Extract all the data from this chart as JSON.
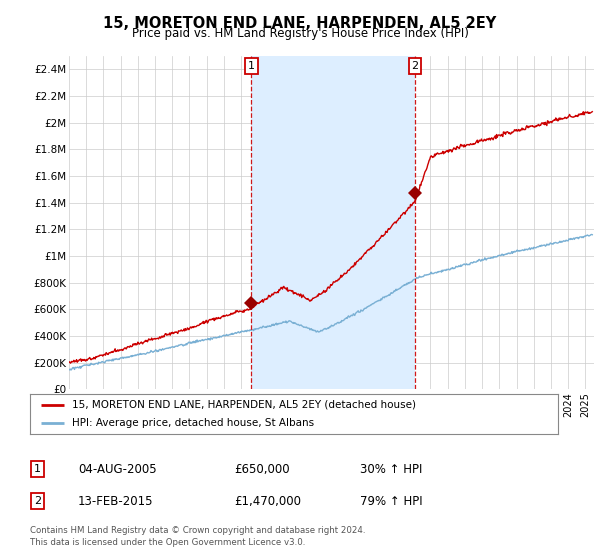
{
  "title": "15, MORETON END LANE, HARPENDEN, AL5 2EY",
  "subtitle": "Price paid vs. HM Land Registry's House Price Index (HPI)",
  "ylim": [
    0,
    2500000
  ],
  "yticks": [
    0,
    200000,
    400000,
    600000,
    800000,
    1000000,
    1200000,
    1400000,
    1600000,
    1800000,
    2000000,
    2200000,
    2400000
  ],
  "ytick_labels": [
    "£0",
    "£200K",
    "£400K",
    "£600K",
    "£800K",
    "£1M",
    "£1.2M",
    "£1.4M",
    "£1.6M",
    "£1.8M",
    "£2M",
    "£2.2M",
    "£2.4M"
  ],
  "xlim_start": 1995.0,
  "xlim_end": 2025.5,
  "sale1_x": 2005.6,
  "sale1_y": 650000,
  "sale2_x": 2015.1,
  "sale2_y": 1470000,
  "sale1_label": "1",
  "sale2_label": "2",
  "vline1_x": 2005.6,
  "vline2_x": 2015.1,
  "red_line_color": "#cc0000",
  "blue_line_color": "#7ab0d4",
  "shade_color": "#ddeeff",
  "dot_color": "#990000",
  "vline_color": "#cc0000",
  "legend_line1": "15, MORETON END LANE, HARPENDEN, AL5 2EY (detached house)",
  "legend_line2": "HPI: Average price, detached house, St Albans",
  "table_row1_num": "1",
  "table_row1_date": "04-AUG-2005",
  "table_row1_price": "£650,000",
  "table_row1_hpi": "30% ↑ HPI",
  "table_row2_num": "2",
  "table_row2_date": "13-FEB-2015",
  "table_row2_price": "£1,470,000",
  "table_row2_hpi": "79% ↑ HPI",
  "footnote1": "Contains HM Land Registry data © Crown copyright and database right 2024.",
  "footnote2": "This data is licensed under the Open Government Licence v3.0.",
  "background_color": "#ffffff",
  "grid_color": "#cccccc"
}
